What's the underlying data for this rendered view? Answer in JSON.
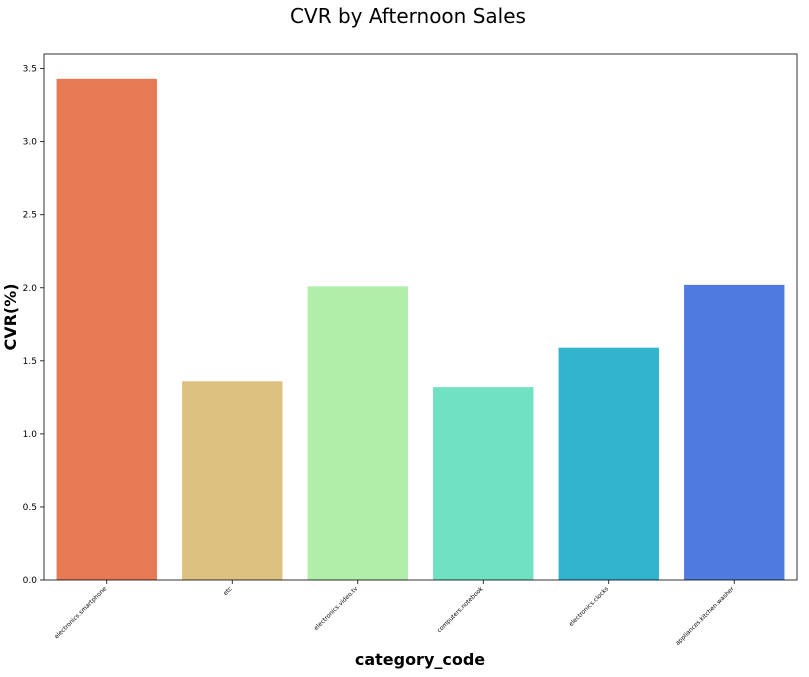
{
  "chart_data": {
    "type": "bar",
    "title": "CVR by Afternoon Sales",
    "xlabel": "category_code",
    "ylabel": "CVR(%)",
    "categories": [
      "electronics.smartphone",
      "etc",
      "electronics.video.tv",
      "computers.notebook",
      "electronics.clocks",
      "appliances.kitchen.washer"
    ],
    "values": [
      3.43,
      1.36,
      2.01,
      1.32,
      1.59,
      2.02
    ],
    "colors": [
      "#e67a54",
      "#dcc17f",
      "#b0eeaa",
      "#70e2c3",
      "#31b4cd",
      "#4f7be0"
    ],
    "ylim": [
      0,
      3.6
    ],
    "yticks": [
      "0.0",
      "0.5",
      "1.0",
      "1.5",
      "2.0",
      "2.5",
      "3.0",
      "3.5"
    ],
    "grid": false,
    "legend": "none"
  }
}
